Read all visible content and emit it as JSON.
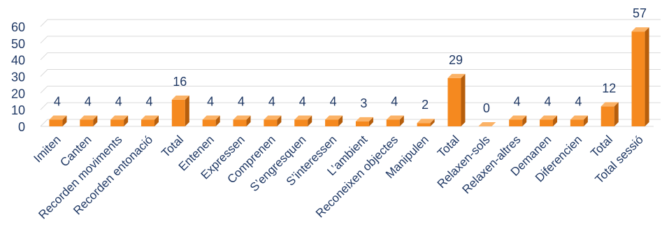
{
  "chart_data": {
    "type": "bar",
    "title": "",
    "xlabel": "",
    "ylabel": "",
    "ylim": [
      0,
      60
    ],
    "yticks": [
      0,
      10,
      20,
      30,
      40,
      50,
      60
    ],
    "grid": true,
    "bar_style": "3d",
    "categories": [
      "Imiten",
      "Canten",
      "Recorden moviments",
      "Recorden entonació",
      "Total",
      "Entenen",
      "Expressen",
      "Comprenen",
      "S’engresquen",
      "S’interessen",
      "L’ambient",
      "Reconeixen objectes",
      "Manipulen",
      "Total",
      "Relaxen-sols",
      "Relaxen-altres",
      "Demanen",
      "Diferencien",
      "Total",
      "Total sessió"
    ],
    "values": [
      4,
      4,
      4,
      4,
      16,
      4,
      4,
      4,
      4,
      4,
      3,
      4,
      2,
      29,
      0,
      4,
      4,
      4,
      12,
      57
    ],
    "data_labels": [
      "4",
      "4",
      "4",
      "4",
      "16",
      "4",
      "4",
      "4",
      "4",
      "4",
      "3",
      "4",
      "2",
      "29",
      "0",
      "4",
      "4",
      "4",
      "12",
      "57"
    ]
  },
  "colors": {
    "bar_front": "#f5891f",
    "bar_side": "#b65e0c",
    "bar_top": "#fbb266",
    "grid": "#d9d9d9",
    "text": "#1f3864"
  }
}
